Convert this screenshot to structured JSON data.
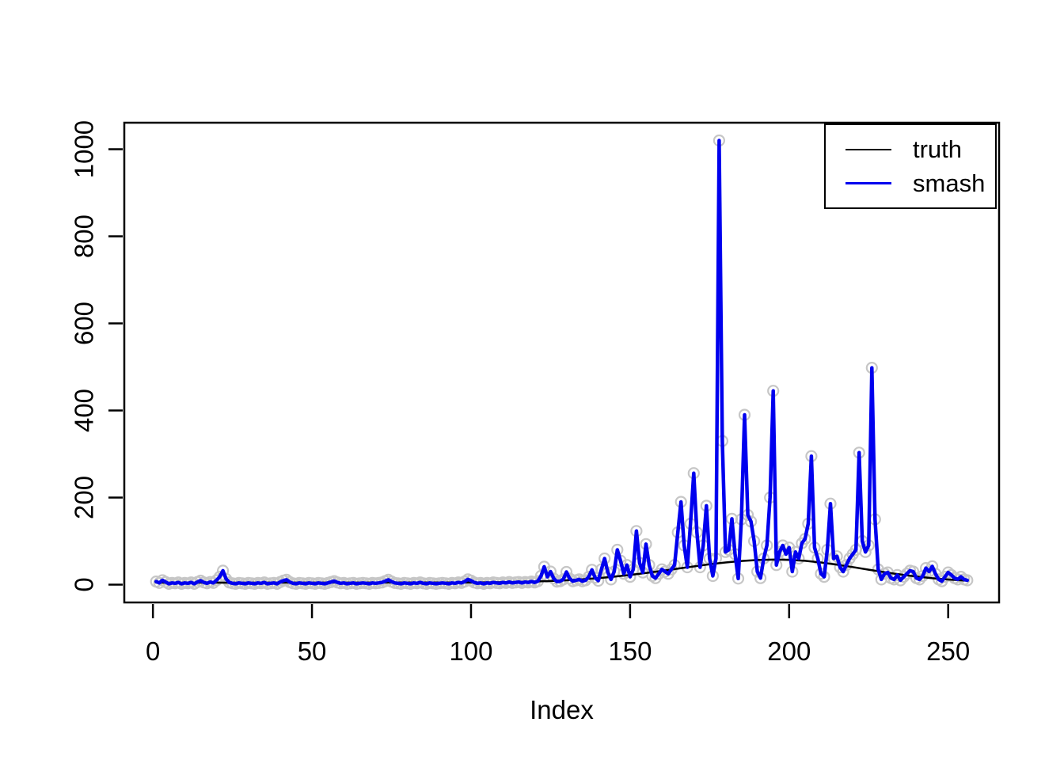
{
  "figure": {
    "background": "#ffffff",
    "legend": {
      "items": [
        {
          "label": "truth",
          "color": "#000000",
          "line_width": 2.5
        },
        {
          "label": "smash",
          "color": "#0000ee",
          "line_width": 3
        }
      ]
    }
  },
  "chart_data": {
    "type": "line",
    "title": "",
    "xlabel": "Index",
    "ylabel": "",
    "xlim": [
      -9,
      266
    ],
    "ylim": [
      -41,
      1061
    ],
    "x_ticks": [
      0,
      50,
      100,
      150,
      200,
      250
    ],
    "y_ticks": [
      0,
      200,
      400,
      600,
      800,
      1000
    ],
    "grid": "off",
    "legend_position": "top-right",
    "marker_color": "#c6c6c6",
    "series": [
      {
        "name": "truth",
        "color": "#000000",
        "linewidth": 2.5,
        "points": [
          [
            1,
            4.5
          ],
          [
            20,
            4.5
          ],
          [
            40,
            4.6
          ],
          [
            60,
            4.7
          ],
          [
            80,
            4.8
          ],
          [
            100,
            4.9
          ],
          [
            110,
            5.6
          ],
          [
            120,
            7.1
          ],
          [
            125,
            8.3
          ],
          [
            130,
            10
          ],
          [
            135,
            12.1
          ],
          [
            140,
            14.9
          ],
          [
            145,
            18.2
          ],
          [
            150,
            22.1
          ],
          [
            155,
            26.6
          ],
          [
            160,
            31.5
          ],
          [
            165,
            36.7
          ],
          [
            170,
            41.8
          ],
          [
            175,
            46.6
          ],
          [
            180,
            50.9
          ],
          [
            185,
            54.3
          ],
          [
            190,
            56.5
          ],
          [
            196,
            57.5
          ],
          [
            200,
            56.9
          ],
          [
            205,
            54.6
          ],
          [
            210,
            50.8
          ],
          [
            215,
            45.9
          ],
          [
            220,
            40.2
          ],
          [
            225,
            34.3
          ],
          [
            232,
            26.3
          ],
          [
            238,
            20.3
          ],
          [
            245,
            14.7
          ],
          [
            250,
            11.7
          ],
          [
            256,
            9
          ]
        ]
      },
      {
        "name": "smash",
        "color": "#0000ee",
        "linewidth": 4.5,
        "marker": {
          "shape": "open-circle",
          "color": "#c6c6c6",
          "radius": 6.5,
          "stroke": 2.2
        },
        "x_start": 1,
        "values": [
          7,
          4,
          10,
          6,
          2,
          4,
          3,
          5,
          2,
          4,
          3,
          5,
          2,
          6,
          9,
          5,
          3,
          6,
          4,
          10,
          18,
          32,
          13,
          5,
          3,
          2,
          4,
          3,
          2,
          4,
          3,
          2,
          4,
          3,
          5,
          2,
          3,
          4,
          2,
          6,
          9,
          11,
          6,
          3,
          2,
          4,
          3,
          2,
          4,
          3,
          2,
          4,
          3,
          2,
          4,
          6,
          8,
          5,
          3,
          4,
          2,
          3,
          4,
          2,
          3,
          4,
          3,
          2,
          4,
          3,
          4,
          5,
          8,
          11,
          7,
          4,
          3,
          2,
          4,
          3,
          2,
          4,
          3,
          5,
          3,
          2,
          4,
          3,
          2,
          3,
          4,
          3,
          2,
          4,
          3,
          5,
          4,
          7,
          12,
          9,
          5,
          3,
          4,
          2,
          4,
          3,
          5,
          4,
          3,
          5,
          4,
          6,
          4,
          5,
          6,
          4,
          6,
          5,
          7,
          5,
          8,
          20,
          41,
          18,
          30,
          14,
          7,
          8,
          12,
          29,
          14,
          8,
          10,
          12,
          8,
          10,
          18,
          34,
          16,
          9,
          35,
          60,
          28,
          12,
          30,
          80,
          55,
          25,
          45,
          18,
          35,
          123,
          50,
          28,
          93,
          45,
          20,
          15,
          25,
          35,
          30,
          25,
          35,
          45,
          120,
          190,
          90,
          40,
          140,
          256,
          120,
          40,
          90,
          181,
          60,
          20,
          60,
          1020,
          330,
          75,
          80,
          151,
          70,
          14,
          150,
          390,
          160,
          145,
          100,
          30,
          15,
          60,
          90,
          200,
          445,
          45,
          75,
          90,
          70,
          85,
          30,
          75,
          60,
          95,
          105,
          140,
          295,
          85,
          60,
          25,
          18,
          80,
          186,
          60,
          65,
          40,
          30,
          45,
          60,
          70,
          80,
          303,
          100,
          75,
          90,
          498,
          150,
          35,
          12,
          25,
          28,
          15,
          12,
          22,
          10,
          18,
          25,
          32,
          30,
          15,
          12,
          20,
          38,
          30,
          42,
          25,
          12,
          8,
          18,
          28,
          22,
          15,
          12,
          18,
          12,
          10
        ]
      }
    ]
  }
}
